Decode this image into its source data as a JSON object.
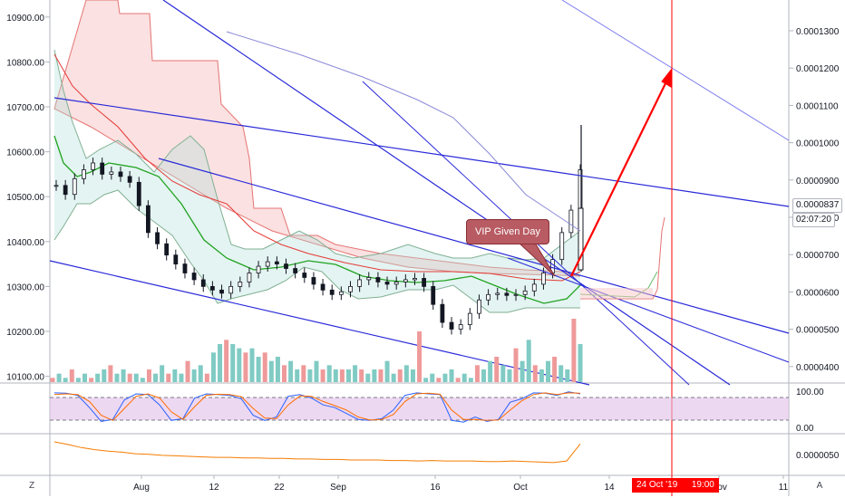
{
  "chart_data": [
    {
      "type": "candlestick",
      "panel": "main",
      "y_ticks_left": [
        "10900.00",
        "10800.00",
        "10700.00",
        "10600.00",
        "10500.00",
        "10400.00",
        "10300.00",
        "10200.00",
        "10100.00"
      ],
      "y_ticks_right": [
        "0.0001300",
        "0.0001200",
        "0.0001100",
        "0.0001000",
        "0.0000900",
        "0.0000800",
        "0.0000700",
        "0.0000600",
        "0.0000500",
        "0.0000400"
      ],
      "ylim": [
        10087,
        10938
      ],
      "current_price": "0.0000837",
      "countdown": "02:07:20",
      "x_ticks": [
        "Aug",
        "12",
        "22",
        "Sep",
        "16",
        "Oct",
        "14",
        "Nov",
        "11"
      ],
      "annotation": "VIP Given Day",
      "target_date": "24 Oct '19",
      "target_time": "19:00",
      "close_series": [
        10525,
        10505,
        10540,
        10560,
        10575,
        10550,
        10555,
        10545,
        10532,
        10480,
        10420,
        10395,
        10370,
        10350,
        10330,
        10315,
        10300,
        10292,
        10285,
        10300,
        10310,
        10330,
        10345,
        10355,
        10350,
        10340,
        10330,
        10320,
        10305,
        10292,
        10282,
        10288,
        10300,
        10315,
        10320,
        10310,
        10305,
        10310,
        10315,
        10318,
        10300,
        10260,
        10220,
        10205,
        10215,
        10240,
        10270,
        10282,
        10285,
        10280,
        10282,
        10290,
        10305,
        10330,
        10360,
        10420,
        10470,
        10560
      ],
      "colors": {
        "up": "#26a69a",
        "down": "#ef5350",
        "lines": "#2929d9",
        "arrow": "#ff0000"
      }
    },
    {
      "type": "bar",
      "panel": "volume",
      "values": [
        1,
        2,
        1,
        3,
        1,
        2,
        1,
        2,
        3,
        4,
        2,
        3,
        2,
        2,
        1,
        3,
        2,
        4,
        2,
        3,
        2,
        5,
        3,
        4,
        2,
        7,
        9,
        10,
        9,
        8,
        7,
        8,
        6,
        7,
        5,
        6,
        4,
        5,
        3,
        4,
        3,
        5,
        3,
        4,
        3,
        3,
        3,
        4,
        3,
        2,
        3,
        3,
        5,
        2,
        3,
        4,
        3,
        12,
        1,
        2,
        1,
        2,
        3,
        1,
        2,
        1,
        4,
        3,
        5,
        6,
        4,
        3,
        8,
        5,
        10,
        4,
        3,
        5,
        6,
        4,
        3,
        15,
        9
      ]
    },
    {
      "type": "line",
      "panel": "stochastic_rsi",
      "y_ticks": [
        "100.00",
        "0.00"
      ],
      "series": [
        {
          "values": [
            95,
            94,
            88,
            52,
            12,
            18,
            75,
            92,
            90,
            60,
            15,
            20,
            80,
            92,
            90,
            88,
            78,
            30,
            15,
            25,
            85,
            90,
            80,
            60,
            52,
            35,
            18,
            15,
            20,
            45,
            88,
            95,
            92,
            90,
            15,
            10,
            25,
            12,
            18,
            68,
            78,
            95,
            94,
            88,
            98,
            92
          ]
        },
        {
          "values": [
            90,
            92,
            90,
            70,
            30,
            15,
            50,
            85,
            92,
            80,
            40,
            18,
            55,
            88,
            91,
            90,
            84,
            50,
            22,
            20,
            60,
            86,
            85,
            70,
            58,
            45,
            25,
            16,
            18,
            32,
            70,
            92,
            94,
            91,
            45,
            18,
            18,
            15,
            16,
            45,
            72,
            90,
            95,
            90,
            95,
            94
          ]
        }
      ],
      "colors": {
        "k": "#2962ff",
        "d": "#ff6d00",
        "band": "#e1bee7"
      }
    },
    {
      "type": "line",
      "panel": "indicator",
      "y_ticks": [
        "0.0000050"
      ],
      "series": [
        {
          "values": [
            6.3,
            5.8,
            5.2,
            4.8,
            4.5,
            4.3,
            4.0,
            3.9,
            3.7,
            3.6,
            3.5,
            3.4,
            3.3,
            3.3,
            3.2,
            3.2,
            3.1,
            3.1,
            3.0,
            3.0,
            2.9,
            2.9,
            2.8,
            2.8,
            2.8,
            2.7,
            2.7,
            2.6,
            2.7,
            2.6,
            2.6,
            2.6,
            2.5,
            2.5,
            2.6,
            2.5,
            2.4,
            2.3,
            2.6,
            5.9
          ]
        }
      ],
      "colors": {
        "line": "#f57c00"
      }
    }
  ],
  "toolbar": {
    "left_corner": "Z",
    "right_corner": "A"
  }
}
